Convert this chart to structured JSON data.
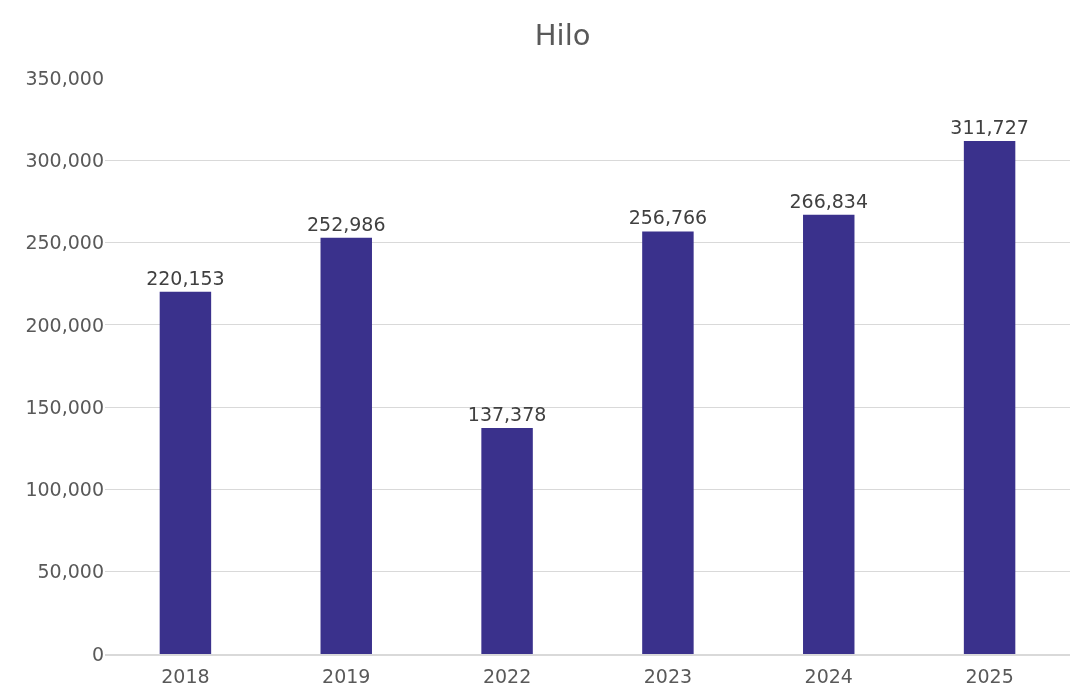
{
  "chart_data": {
    "type": "bar",
    "title": "Hilo",
    "categories": [
      "2018",
      "2019",
      "2022",
      "2023",
      "2024",
      "2025"
    ],
    "values": [
      220153,
      252986,
      137378,
      256766,
      266834,
      311727
    ],
    "color": "#3a318c",
    "ylim": [
      0,
      350000
    ],
    "yticks": [
      {
        "value": 0,
        "label": "0"
      },
      {
        "value": 50000,
        "label": "50,000"
      },
      {
        "value": 100000,
        "label": "100,000"
      },
      {
        "value": 150000,
        "label": "150,000"
      },
      {
        "value": 200000,
        "label": "200,000"
      },
      {
        "value": 250000,
        "label": "250,000"
      },
      {
        "value": 300000,
        "label": "300,000"
      },
      {
        "value": 350000,
        "label": "350,000"
      }
    ],
    "value_labels": [
      "220,153",
      "252,986",
      "137,378",
      "256,766",
      "266,834",
      "311,727"
    ],
    "grid": "y"
  }
}
